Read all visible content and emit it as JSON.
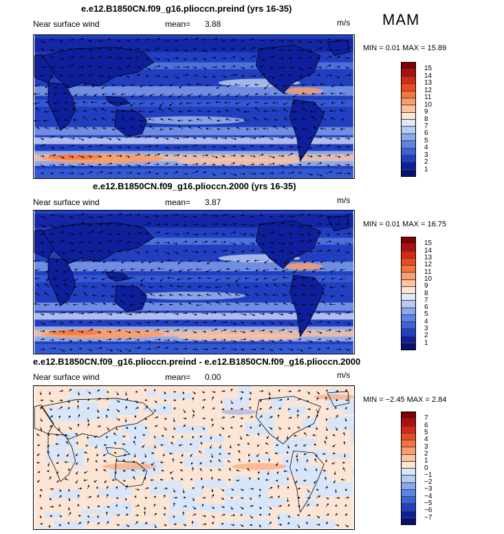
{
  "season": "MAM",
  "panels": [
    {
      "title": "e.e12.B1850CN.f09_g16.plioccn.preind (yrs 16-35)",
      "field": "Near surface wind",
      "mean_label": "mean=",
      "mean": "3.88",
      "units": "m/s",
      "minmax": "MIN =   0.01 MAX =  15.89",
      "levels": [
        "15",
        "14",
        "13",
        "12",
        "11",
        "10",
        "9",
        "8",
        "7",
        "6",
        "5",
        "4",
        "3",
        "2",
        "1"
      ]
    },
    {
      "title": "e.e12.B1850CN.f09_g16.plioccn.2000 (yrs 16-35)",
      "field": "Near surface wind",
      "mean_label": "mean=",
      "mean": "3.87",
      "units": "m/s",
      "minmax": "MIN =   0.01 MAX =  16.75",
      "levels": [
        "15",
        "14",
        "13",
        "12",
        "11",
        "10",
        "9",
        "8",
        "7",
        "6",
        "5",
        "4",
        "3",
        "2",
        "1"
      ]
    },
    {
      "title": "e.e12.B1850CN.f09_g16.plioccn.preind - e.e12.B1850CN.f09_g16.plioccn.2000",
      "field": "Near surface wind",
      "mean_label": "mean=",
      "mean": "0.00",
      "units": "m/s",
      "minmax": "MIN = −2.45 MAX =   2.84",
      "levels": [
        "7",
        "6",
        "5",
        "4",
        "3",
        "2",
        "1",
        "0",
        "−1",
        "−2",
        "−3",
        "−4",
        "−5",
        "−6",
        "−7"
      ]
    }
  ],
  "colors": {
    "abs_scale": [
      "#800000",
      "#b00f0f",
      "#d42a12",
      "#ec4a1f",
      "#f6753d",
      "#fa9c6c",
      "#fbc3a0",
      "#fde5d5",
      "#dde8fa",
      "#b6ccf5",
      "#8aa8ee",
      "#5c83e6",
      "#3a63d8",
      "#213fc0",
      "#0f1f9c",
      "#06106e"
    ],
    "diff_scale": [
      "#800000",
      "#b00f0f",
      "#d42a12",
      "#ec4a1f",
      "#f6753d",
      "#fa9c6c",
      "#fbc3a0",
      "#fde5d5",
      "#d6e6fb",
      "#b6ccf5",
      "#8aa8ee",
      "#5c83e6",
      "#3a63d8",
      "#213fc0",
      "#0f1f9c",
      "#06106e"
    ]
  }
}
